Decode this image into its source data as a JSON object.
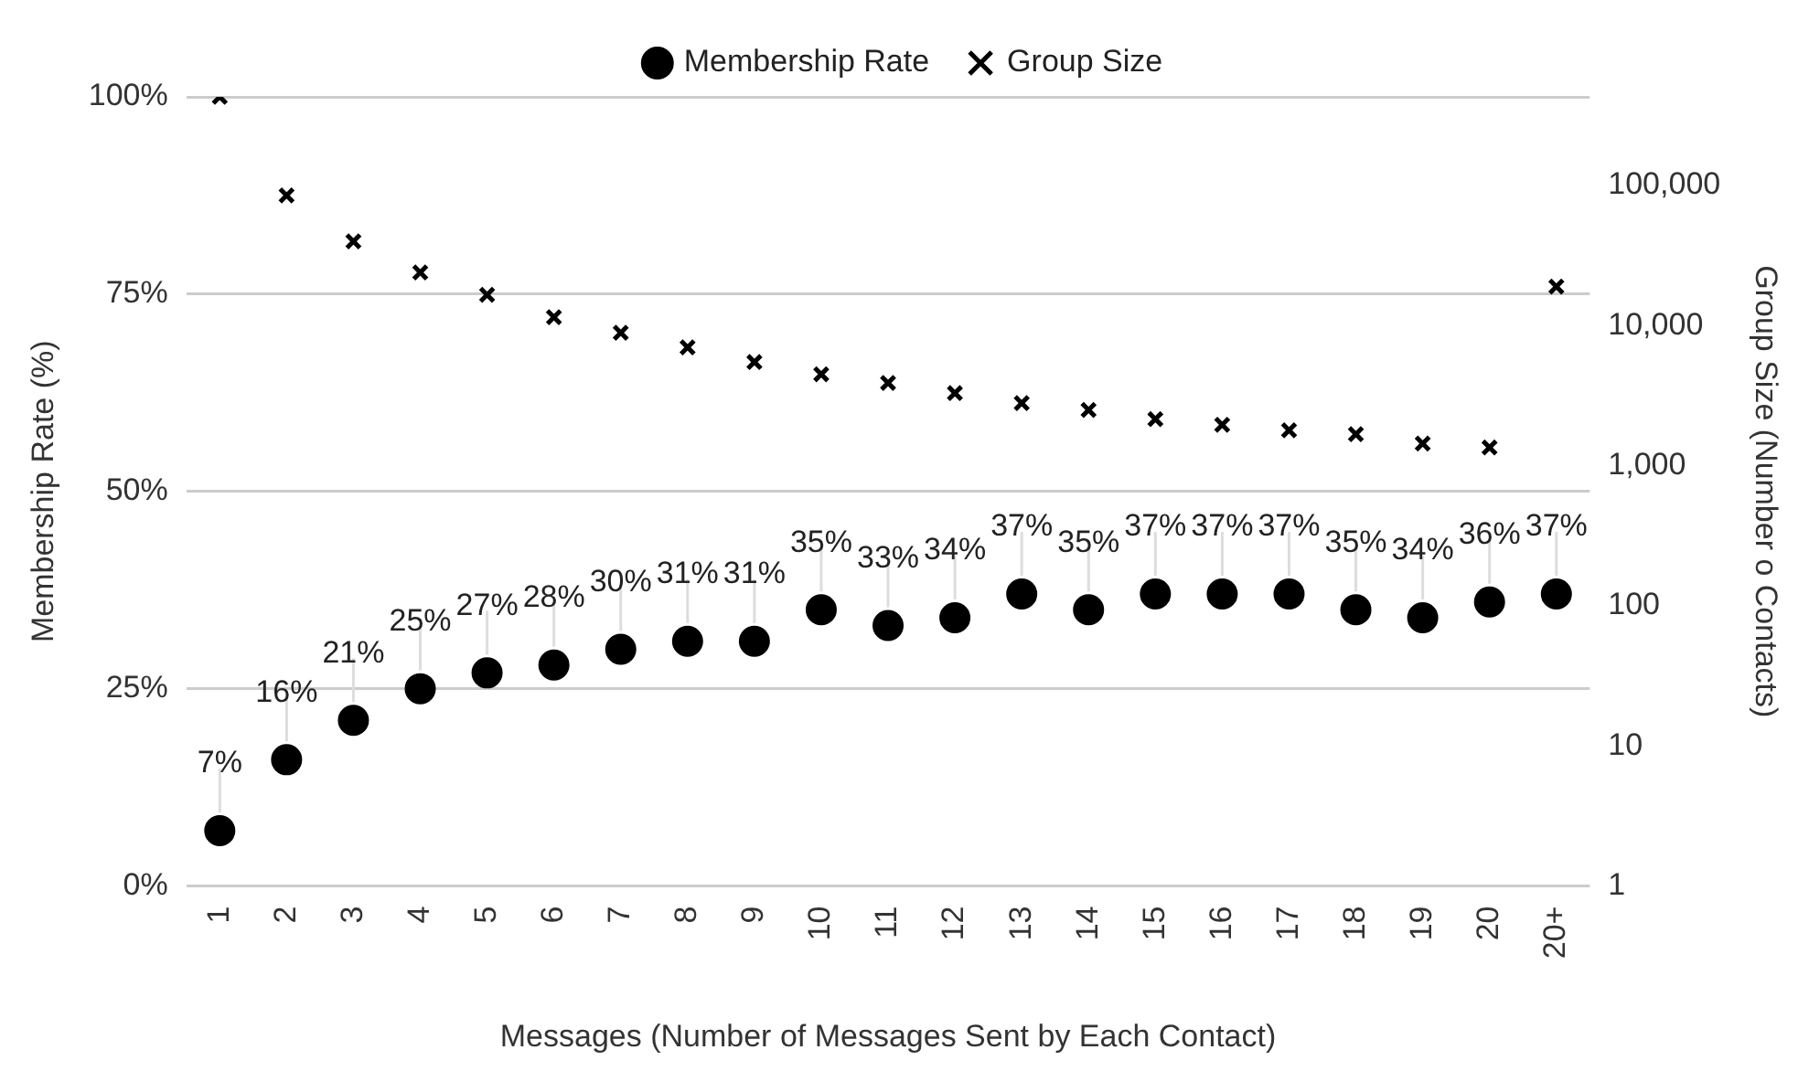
{
  "chart_data": {
    "type": "scatter",
    "xlabel": "Messages (Number of Messages Sent by Each Contact)",
    "ylabel": "Membership Rate (%)",
    "y2label": "Group Size (Number o Contacts)",
    "categories": [
      "1",
      "2",
      "3",
      "4",
      "5",
      "6",
      "7",
      "8",
      "9",
      "10",
      "11",
      "12",
      "13",
      "14",
      "15",
      "16",
      "17",
      "18",
      "19",
      "20",
      "20+"
    ],
    "series": [
      {
        "name": "Membership Rate",
        "color": "#000000",
        "marker": "circle",
        "values": [
          7,
          16,
          21,
          25,
          27,
          28,
          30,
          31,
          31,
          35,
          33,
          34,
          37,
          35,
          37,
          37,
          37,
          35,
          34,
          36,
          37
        ],
        "value_labels": [
          "7%",
          "16%",
          "21%",
          "25%",
          "27%",
          "28%",
          "30%",
          "31%",
          "31%",
          "35%",
          "33%",
          "34%",
          "37%",
          "35%",
          "37%",
          "37%",
          "37%",
          "35%",
          "34%",
          "36%",
          "37%"
        ]
      },
      {
        "name": "Group Size",
        "color": "#000000",
        "marker": "cross",
        "axis": "y2",
        "values": [
          430000,
          85000,
          40000,
          24000,
          16600,
          11500,
          8900,
          7000,
          5500,
          4500,
          3900,
          3300,
          2800,
          2500,
          2150,
          1960,
          1790,
          1680,
          1440,
          1350,
          19000
        ]
      }
    ],
    "ylim": [
      0,
      100
    ],
    "yticks": [
      {
        "value": 0,
        "label": "0%"
      },
      {
        "value": 25,
        "label": "25%"
      },
      {
        "value": 50,
        "label": "50%"
      },
      {
        "value": 75,
        "label": "75%"
      },
      {
        "value": 100,
        "label": "100%"
      }
    ],
    "y2lim": [
      1,
      430000
    ],
    "y2ticks": [
      1,
      10,
      100,
      {
        "value": 1000,
        "label": "1,000"
      },
      {
        "value": 10000,
        "label": "10,000"
      },
      {
        "value": 100000,
        "label": "100,000"
      }
    ],
    "log": "y2",
    "grid": "y",
    "legend": "top"
  }
}
